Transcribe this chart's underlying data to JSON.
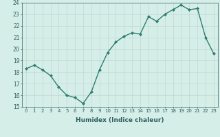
{
  "x": [
    0,
    1,
    2,
    3,
    4,
    5,
    6,
    7,
    8,
    9,
    10,
    11,
    12,
    13,
    14,
    15,
    16,
    17,
    18,
    19,
    20,
    21,
    22,
    23
  ],
  "y": [
    18.3,
    18.6,
    18.2,
    17.7,
    16.7,
    16.0,
    15.8,
    15.3,
    16.3,
    18.2,
    19.7,
    20.6,
    21.1,
    21.4,
    21.3,
    22.8,
    22.4,
    23.0,
    23.4,
    23.8,
    23.4,
    23.5,
    21.0,
    19.6
  ],
  "xlabel": "Humidex (Indice chaleur)",
  "ylim": [
    15,
    24
  ],
  "xlim": [
    -0.5,
    23.5
  ],
  "yticks": [
    15,
    16,
    17,
    18,
    19,
    20,
    21,
    22,
    23,
    24
  ],
  "xticks": [
    0,
    1,
    2,
    3,
    4,
    5,
    6,
    7,
    8,
    9,
    10,
    11,
    12,
    13,
    14,
    15,
    16,
    17,
    18,
    19,
    20,
    21,
    22,
    23
  ],
  "line_color": "#2e7d6e",
  "marker": "D",
  "marker_size": 2.0,
  "bg_color": "#d6eee8",
  "grid_color": "#c0d8d0",
  "font_color": "#2e5e5e",
  "line_width": 1.0,
  "tick_fontsize": 5.0,
  "xlabel_fontsize": 6.5,
  "xlabel_fontweight": "bold"
}
